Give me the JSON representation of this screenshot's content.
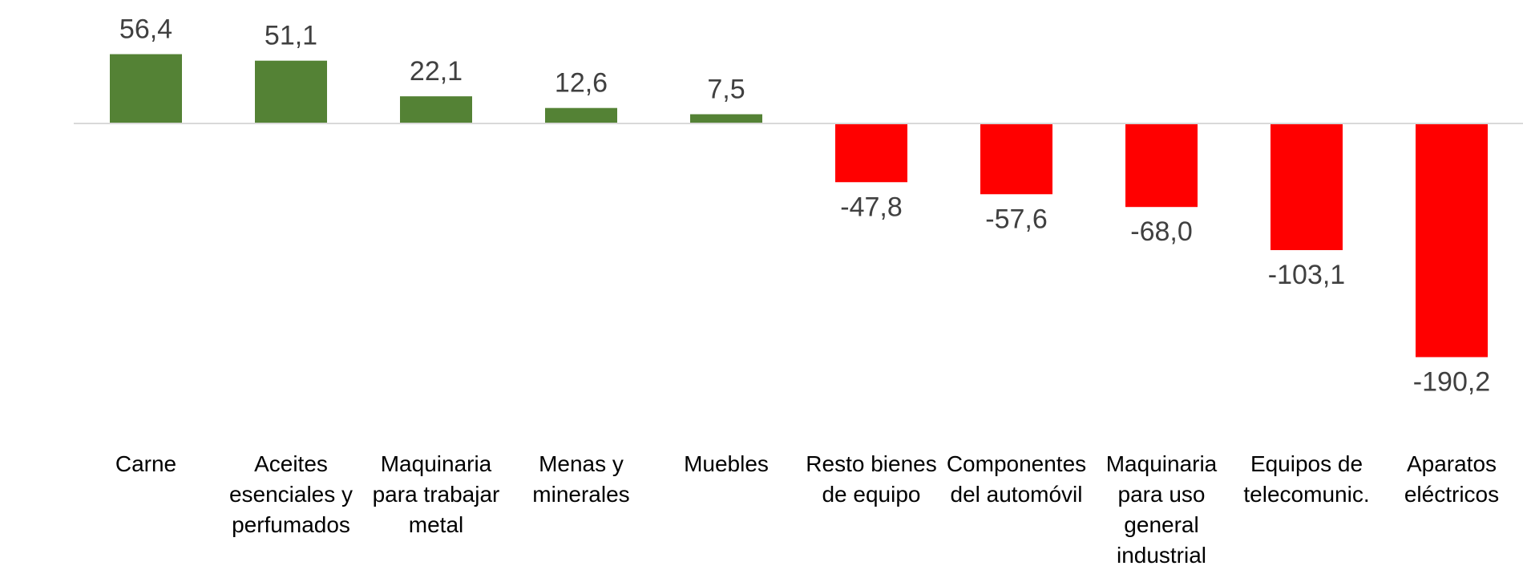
{
  "chart_data": {
    "type": "bar",
    "title": "",
    "xlabel": "",
    "ylabel": "",
    "categories": [
      [
        "Carne"
      ],
      [
        "Aceites",
        "esenciales y",
        "perfumados"
      ],
      [
        "Maquinaria",
        "para trabajar",
        "metal"
      ],
      [
        "Menas y",
        "minerales"
      ],
      [
        "Muebles"
      ],
      [
        "Resto bienes",
        "de equipo"
      ],
      [
        "Componentes",
        "del automóvil"
      ],
      [
        "Maquinaria",
        "para uso",
        "general",
        "industrial"
      ],
      [
        "Equipos de",
        "telecomunic."
      ],
      [
        "Aparatos",
        "eléctricos"
      ]
    ],
    "values": [
      56.4,
      51.1,
      22.1,
      12.6,
      7.5,
      -47.8,
      -57.6,
      -68.0,
      -103.1,
      -190.2
    ],
    "value_labels": [
      "56,4",
      "51,1",
      "22,1",
      "12,6",
      "7,5",
      "-47,8",
      "-57,6",
      "-68,0",
      "-103,1",
      "-190,2"
    ],
    "ylim": [
      -200,
      60
    ],
    "grid": false,
    "legend": "none",
    "colors": {
      "positive": "#548235",
      "negative": "#ff0000",
      "axis": "#d9d9d9"
    }
  }
}
